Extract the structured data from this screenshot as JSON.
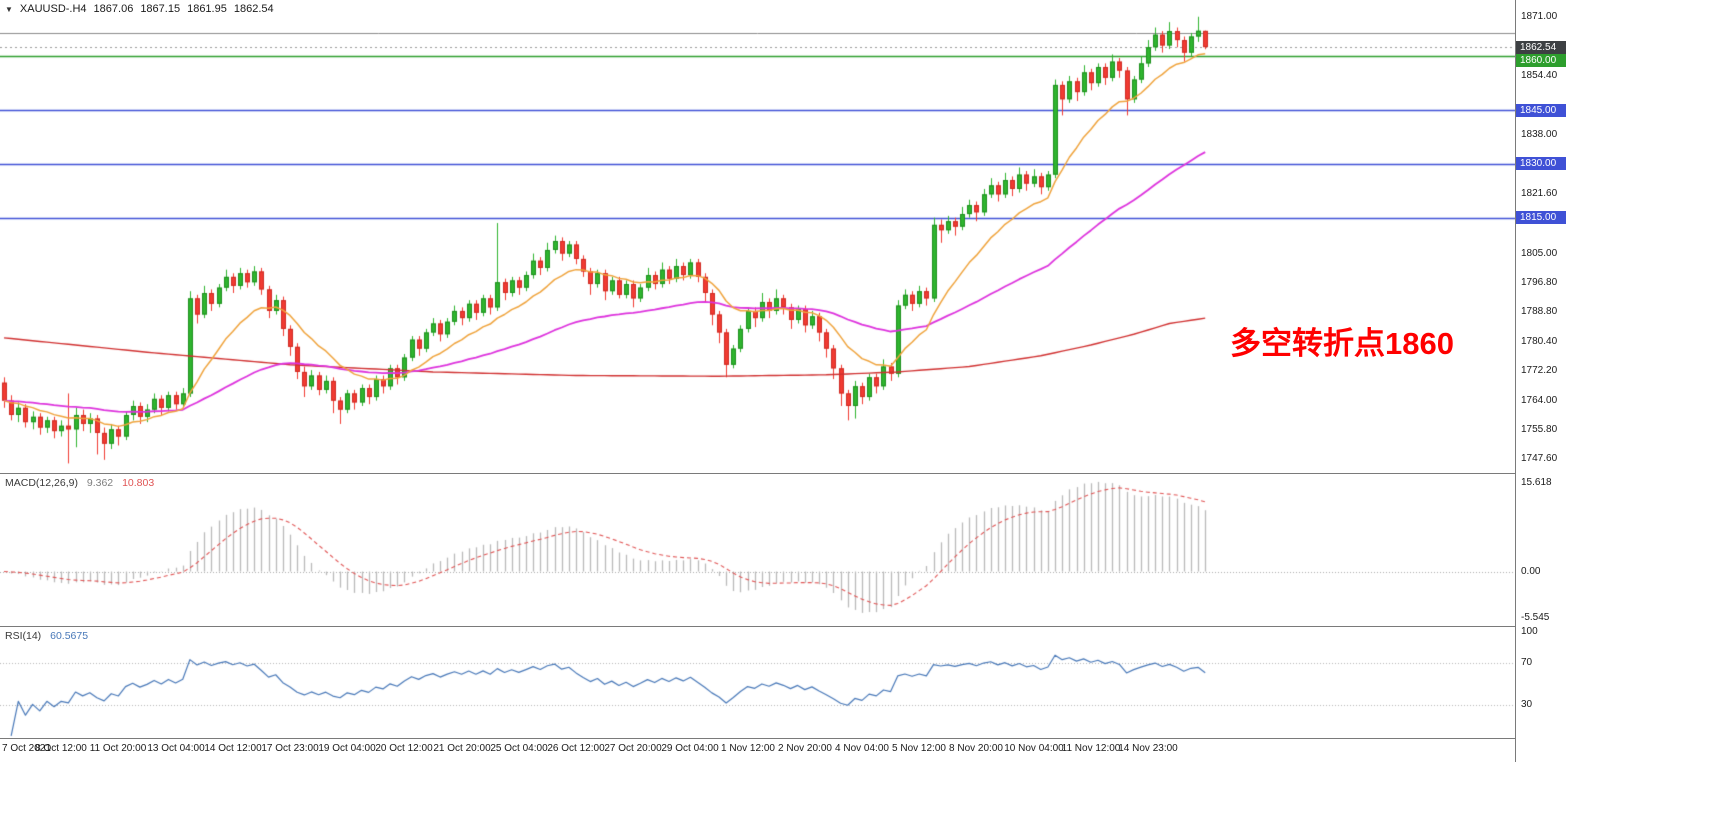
{
  "header": {
    "dropdown_icon": "▼",
    "symbol": "XAUUSD-.H4",
    "open": "1867.06",
    "high": "1867.15",
    "low": "1861.95",
    "close": "1862.54"
  },
  "annotation": {
    "text": "多空转折点1860",
    "color": "#ff0000"
  },
  "colors": {
    "background": "#ffffff",
    "candle_up": "#2fb42f",
    "candle_up_border": "#1d8f1d",
    "candle_down": "#f03b32",
    "candle_down_border": "#cf2a22",
    "level_green": "#2d9e2d",
    "level_blue": "#3f51d6",
    "current_price_box": "#3d4043",
    "object_gray": "#8a8a8a",
    "current_price_dotted": "#9a9a9a",
    "ma_fast_orange": "#efa33c",
    "ma_mid_magenta": "#dd33dd",
    "ma_slow_red": "#d03030",
    "macd_histogram": "#b9b9b9",
    "macd_signal": "#e05555",
    "rsi_line": "#4878b8",
    "pane_divider": "#7a7a7a"
  },
  "chart_data": {
    "type": "candlestick",
    "title": "XAUUSD- H4",
    "y_axis": {
      "top": 1874.0,
      "bottom": 1745.5,
      "ticks": [
        {
          "v": 1871.0,
          "t": "1871.00"
        },
        {
          "v": 1854.4,
          "t": "1854.40"
        },
        {
          "v": 1838.0,
          "t": "1838.00"
        },
        {
          "v": 1821.6,
          "t": "1821.60"
        },
        {
          "v": 1805.0,
          "t": "1805.00"
        },
        {
          "v": 1796.8,
          "t": "1796.80"
        },
        {
          "v": 1788.8,
          "t": "1788.80"
        },
        {
          "v": 1780.4,
          "t": "1780.40"
        },
        {
          "v": 1772.2,
          "t": "1772.20"
        },
        {
          "v": 1764.0,
          "t": "1764.00"
        },
        {
          "v": 1755.8,
          "t": "1755.80"
        },
        {
          "v": 1747.6,
          "t": "1747.60"
        }
      ]
    },
    "x_axis": {
      "label_step": 8,
      "labels": [
        "7 Oct 2021",
        "8 Oct 12:00",
        "11 Oct 20:00",
        "13 Oct 04:00",
        "14 Oct 12:00",
        "17 Oct 23:00",
        "19 Oct 04:00",
        "20 Oct 12:00",
        "21 Oct 20:00",
        "25 Oct 04:00",
        "26 Oct 12:00",
        "27 Oct 20:00",
        "29 Oct 04:00",
        "1 Nov 12:00",
        "2 Nov 20:00",
        "4 Nov 04:00",
        "5 Nov 12:00",
        "8 Nov 20:00",
        "10 Nov 04:00",
        "11 Nov 12:00",
        "14 Nov 23:00"
      ]
    },
    "levels": [
      {
        "v": 1860.0,
        "t": "1860.00",
        "color": "#2d9e2d"
      },
      {
        "v": 1845.0,
        "t": "1845.00",
        "color": "#3f51d6"
      },
      {
        "v": 1830.0,
        "t": "1830.00",
        "color": "#3f51d6"
      },
      {
        "v": 1815.0,
        "t": "1815.00",
        "color": "#3f51d6"
      }
    ],
    "current_price": {
      "v": 1862.54,
      "t": "1862.54"
    },
    "gray_hline": {
      "v": 1866.6
    },
    "moving_averages": [
      {
        "name": "ma-fast",
        "type": "ema",
        "period": 13,
        "color": "#efa33c",
        "width": 1.5
      },
      {
        "name": "ma-mid",
        "type": "ema",
        "period": 55,
        "color": "#dd33dd",
        "width": 1.8
      },
      {
        "name": "ma-slow",
        "type": "points",
        "color": "#d03030",
        "width": 1.4,
        "points": [
          [
            0,
            1781.5
          ],
          [
            20,
            1777.5
          ],
          [
            40,
            1774.0
          ],
          [
            60,
            1772.0
          ],
          [
            80,
            1771.0
          ],
          [
            100,
            1770.8
          ],
          [
            115,
            1771.2
          ],
          [
            125,
            1772.0
          ],
          [
            135,
            1773.5
          ],
          [
            145,
            1776.5
          ],
          [
            152,
            1779.5
          ],
          [
            158,
            1782.5
          ],
          [
            163,
            1785.5
          ],
          [
            168,
            1787.0
          ]
        ]
      }
    ],
    "macd": {
      "label": "MACD(12,26,9)",
      "main_value": "9.362",
      "signal_value": "10.803",
      "fast": 12,
      "slow": 26,
      "signal": 9,
      "axis": {
        "top": "15.618",
        "zero": "0.00",
        "bottom": "-5.545"
      }
    },
    "rsi": {
      "label": "RSI(14)",
      "value": "60.5675",
      "period": 14,
      "axis_levels": [
        {
          "v": 100,
          "t": "100"
        },
        {
          "v": 70,
          "t": "70"
        },
        {
          "v": 30,
          "t": "30"
        }
      ]
    },
    "candles": [
      [
        1769.0,
        1770.5,
        1762.0,
        1764.0
      ],
      [
        1764.0,
        1765.5,
        1758.5,
        1760.0
      ],
      [
        1760.0,
        1763.5,
        1758.0,
        1762.0
      ],
      [
        1762.0,
        1763.0,
        1756.5,
        1758.0
      ],
      [
        1758.0,
        1761.0,
        1756.0,
        1759.5
      ],
      [
        1759.5,
        1760.5,
        1754.5,
        1756.5
      ],
      [
        1756.5,
        1759.5,
        1755.0,
        1758.5
      ],
      [
        1758.5,
        1759.5,
        1753.5,
        1755.5
      ],
      [
        1755.5,
        1758.5,
        1754.0,
        1757.0
      ],
      [
        1757.0,
        1766.0,
        1746.5,
        1756.0
      ],
      [
        1756.0,
        1762.0,
        1751.0,
        1760.0
      ],
      [
        1760.0,
        1761.5,
        1755.5,
        1757.5
      ],
      [
        1757.5,
        1760.5,
        1755.0,
        1759.0
      ],
      [
        1759.0,
        1760.0,
        1749.0,
        1755.0
      ],
      [
        1755.0,
        1756.5,
        1747.5,
        1752.0
      ],
      [
        1752.0,
        1757.5,
        1750.5,
        1756.0
      ],
      [
        1756.0,
        1757.0,
        1751.5,
        1754.0
      ],
      [
        1754.0,
        1761.0,
        1753.0,
        1760.0
      ],
      [
        1760.0,
        1764.0,
        1758.5,
        1762.5
      ],
      [
        1762.5,
        1763.5,
        1757.5,
        1759.5
      ],
      [
        1759.5,
        1763.0,
        1758.0,
        1761.5
      ],
      [
        1761.5,
        1766.0,
        1760.5,
        1764.5
      ],
      [
        1764.5,
        1765.5,
        1760.0,
        1762.0
      ],
      [
        1762.0,
        1766.5,
        1761.0,
        1765.5
      ],
      [
        1765.5,
        1766.5,
        1761.5,
        1763.0
      ],
      [
        1763.0,
        1767.5,
        1762.0,
        1766.0
      ],
      [
        1766.0,
        1794.5,
        1765.0,
        1792.5
      ],
      [
        1792.5,
        1793.5,
        1785.5,
        1788.0
      ],
      [
        1788.0,
        1796.0,
        1787.0,
        1794.0
      ],
      [
        1794.0,
        1795.0,
        1789.0,
        1791.0
      ],
      [
        1791.0,
        1796.5,
        1790.0,
        1795.5
      ],
      [
        1795.5,
        1800.5,
        1794.5,
        1798.5
      ],
      [
        1798.5,
        1799.5,
        1794.0,
        1796.0
      ],
      [
        1796.0,
        1801.0,
        1795.0,
        1799.5
      ],
      [
        1799.5,
        1800.5,
        1795.5,
        1797.0
      ],
      [
        1797.0,
        1801.5,
        1796.0,
        1800.0
      ],
      [
        1800.0,
        1801.0,
        1793.5,
        1795.0
      ],
      [
        1795.0,
        1796.0,
        1787.0,
        1789.0
      ],
      [
        1789.0,
        1793.5,
        1788.0,
        1792.0
      ],
      [
        1792.0,
        1793.0,
        1782.0,
        1784.0
      ],
      [
        1784.0,
        1785.0,
        1776.5,
        1779.0
      ],
      [
        1779.0,
        1780.0,
        1770.0,
        1772.0
      ],
      [
        1772.0,
        1773.5,
        1765.0,
        1768.0
      ],
      [
        1768.0,
        1772.5,
        1767.0,
        1771.0
      ],
      [
        1771.0,
        1772.0,
        1765.5,
        1767.0
      ],
      [
        1767.0,
        1771.0,
        1766.0,
        1769.5
      ],
      [
        1769.5,
        1770.5,
        1760.5,
        1764.0
      ],
      [
        1764.0,
        1765.0,
        1757.5,
        1761.5
      ],
      [
        1761.5,
        1767.0,
        1760.5,
        1766.0
      ],
      [
        1766.0,
        1767.0,
        1761.5,
        1763.5
      ],
      [
        1763.5,
        1768.5,
        1762.5,
        1767.5
      ],
      [
        1767.5,
        1768.5,
        1763.0,
        1765.0
      ],
      [
        1765.0,
        1771.0,
        1764.0,
        1770.0
      ],
      [
        1770.0,
        1771.0,
        1766.0,
        1768.0
      ],
      [
        1768.0,
        1774.0,
        1767.0,
        1773.0
      ],
      [
        1773.0,
        1774.0,
        1768.5,
        1770.5
      ],
      [
        1770.5,
        1777.0,
        1769.5,
        1776.0
      ],
      [
        1776.0,
        1782.0,
        1775.0,
        1781.0
      ],
      [
        1781.0,
        1782.0,
        1776.5,
        1778.5
      ],
      [
        1778.5,
        1784.0,
        1777.5,
        1783.0
      ],
      [
        1783.0,
        1787.0,
        1782.0,
        1785.5
      ],
      [
        1785.5,
        1786.5,
        1780.5,
        1782.5
      ],
      [
        1782.5,
        1787.0,
        1781.5,
        1786.0
      ],
      [
        1786.0,
        1790.5,
        1785.0,
        1789.0
      ],
      [
        1789.0,
        1790.0,
        1785.0,
        1787.0
      ],
      [
        1787.0,
        1792.0,
        1786.0,
        1791.0
      ],
      [
        1791.0,
        1792.0,
        1786.5,
        1788.5
      ],
      [
        1788.5,
        1793.5,
        1787.5,
        1792.5
      ],
      [
        1792.5,
        1793.5,
        1788.0,
        1790.0
      ],
      [
        1790.0,
        1813.5,
        1789.0,
        1797.0
      ],
      [
        1797.0,
        1798.0,
        1792.0,
        1794.0
      ],
      [
        1794.0,
        1798.5,
        1793.0,
        1797.5
      ],
      [
        1797.5,
        1798.5,
        1793.5,
        1795.5
      ],
      [
        1795.5,
        1800.0,
        1794.5,
        1799.0
      ],
      [
        1799.0,
        1805.0,
        1798.0,
        1803.0
      ],
      [
        1803.0,
        1804.0,
        1799.0,
        1801.0
      ],
      [
        1801.0,
        1808.0,
        1800.0,
        1806.0
      ],
      [
        1806.0,
        1810.0,
        1805.0,
        1808.5
      ],
      [
        1808.5,
        1809.5,
        1803.0,
        1805.0
      ],
      [
        1805.0,
        1808.5,
        1804.0,
        1807.5
      ],
      [
        1807.5,
        1808.5,
        1802.0,
        1803.5
      ],
      [
        1803.5,
        1804.5,
        1798.5,
        1800.0
      ],
      [
        1800.0,
        1801.0,
        1793.5,
        1796.5
      ],
      [
        1796.5,
        1800.5,
        1795.5,
        1799.5
      ],
      [
        1799.5,
        1800.5,
        1792.0,
        1794.5
      ],
      [
        1794.5,
        1798.5,
        1793.5,
        1797.5
      ],
      [
        1797.5,
        1798.5,
        1792.5,
        1793.5
      ],
      [
        1793.5,
        1797.5,
        1792.5,
        1796.5
      ],
      [
        1796.5,
        1797.5,
        1790.0,
        1792.5
      ],
      [
        1792.5,
        1796.5,
        1791.5,
        1795.5
      ],
      [
        1795.5,
        1801.0,
        1794.5,
        1799.0
      ],
      [
        1799.0,
        1800.0,
        1795.0,
        1796.5
      ],
      [
        1796.5,
        1802.5,
        1795.5,
        1800.5
      ],
      [
        1800.5,
        1801.5,
        1796.5,
        1798.0
      ],
      [
        1798.0,
        1803.5,
        1797.0,
        1801.5
      ],
      [
        1801.5,
        1802.5,
        1797.5,
        1799.0
      ],
      [
        1799.0,
        1803.5,
        1798.0,
        1802.5
      ],
      [
        1802.5,
        1803.5,
        1797.0,
        1798.5
      ],
      [
        1798.5,
        1799.5,
        1791.5,
        1794.0
      ],
      [
        1794.0,
        1795.0,
        1785.0,
        1788.0
      ],
      [
        1788.0,
        1789.0,
        1780.0,
        1783.0
      ],
      [
        1783.0,
        1784.0,
        1770.5,
        1774.0
      ],
      [
        1774.0,
        1779.5,
        1773.0,
        1778.5
      ],
      [
        1778.5,
        1785.0,
        1777.5,
        1784.0
      ],
      [
        1784.0,
        1790.0,
        1783.0,
        1789.0
      ],
      [
        1789.0,
        1790.0,
        1784.5,
        1787.0
      ],
      [
        1787.0,
        1794.0,
        1786.0,
        1791.5
      ],
      [
        1791.5,
        1792.5,
        1787.0,
        1789.0
      ],
      [
        1789.0,
        1795.0,
        1788.0,
        1792.5
      ],
      [
        1792.5,
        1793.5,
        1788.0,
        1790.0
      ],
      [
        1790.0,
        1791.0,
        1784.0,
        1786.5
      ],
      [
        1786.5,
        1790.5,
        1785.5,
        1789.5
      ],
      [
        1789.5,
        1790.5,
        1783.0,
        1785.0
      ],
      [
        1785.0,
        1789.0,
        1784.0,
        1787.5
      ],
      [
        1787.5,
        1788.5,
        1780.5,
        1783.0
      ],
      [
        1783.0,
        1784.0,
        1776.0,
        1778.5
      ],
      [
        1778.5,
        1779.5,
        1770.0,
        1773.0
      ],
      [
        1773.0,
        1774.0,
        1762.5,
        1766.0
      ],
      [
        1766.0,
        1767.0,
        1758.5,
        1762.5
      ],
      [
        1762.5,
        1769.5,
        1759.0,
        1768.0
      ],
      [
        1768.0,
        1769.0,
        1763.0,
        1765.0
      ],
      [
        1765.0,
        1771.5,
        1764.0,
        1770.5
      ],
      [
        1770.5,
        1771.5,
        1766.0,
        1768.0
      ],
      [
        1768.0,
        1775.5,
        1767.0,
        1773.5
      ],
      [
        1773.5,
        1774.5,
        1769.5,
        1771.5
      ],
      [
        1771.5,
        1792.0,
        1770.5,
        1790.5
      ],
      [
        1790.5,
        1795.0,
        1789.5,
        1793.5
      ],
      [
        1793.5,
        1794.5,
        1789.0,
        1791.0
      ],
      [
        1791.0,
        1796.0,
        1790.0,
        1794.5
      ],
      [
        1794.5,
        1795.5,
        1790.5,
        1792.5
      ],
      [
        1792.5,
        1815.0,
        1791.5,
        1813.0
      ],
      [
        1813.0,
        1814.5,
        1808.0,
        1811.5
      ],
      [
        1811.5,
        1815.5,
        1810.5,
        1814.0
      ],
      [
        1814.0,
        1815.0,
        1810.0,
        1812.5
      ],
      [
        1812.5,
        1818.0,
        1811.5,
        1816.0
      ],
      [
        1816.0,
        1820.0,
        1815.0,
        1818.5
      ],
      [
        1818.5,
        1819.5,
        1814.0,
        1816.5
      ],
      [
        1816.5,
        1823.0,
        1815.5,
        1821.5
      ],
      [
        1821.5,
        1826.0,
        1820.5,
        1824.0
      ],
      [
        1824.0,
        1825.0,
        1819.5,
        1821.5
      ],
      [
        1821.5,
        1827.5,
        1820.5,
        1825.5
      ],
      [
        1825.5,
        1826.5,
        1821.0,
        1823.0
      ],
      [
        1823.0,
        1829.0,
        1822.0,
        1827.0
      ],
      [
        1827.0,
        1828.0,
        1822.5,
        1824.5
      ],
      [
        1824.5,
        1828.5,
        1823.5,
        1826.5
      ],
      [
        1826.5,
        1827.5,
        1821.5,
        1823.5
      ],
      [
        1823.5,
        1828.0,
        1822.5,
        1827.0
      ],
      [
        1827.0,
        1853.5,
        1826.0,
        1852.0
      ],
      [
        1852.0,
        1853.0,
        1843.5,
        1848.0
      ],
      [
        1848.0,
        1854.5,
        1847.0,
        1853.0
      ],
      [
        1853.0,
        1854.0,
        1847.5,
        1850.0
      ],
      [
        1850.0,
        1857.5,
        1849.0,
        1855.5
      ],
      [
        1855.5,
        1856.5,
        1850.5,
        1852.5
      ],
      [
        1852.5,
        1858.0,
        1851.5,
        1857.0
      ],
      [
        1857.0,
        1858.0,
        1852.0,
        1854.0
      ],
      [
        1854.0,
        1860.5,
        1853.0,
        1858.5
      ],
      [
        1858.5,
        1859.5,
        1854.0,
        1856.0
      ],
      [
        1856.0,
        1857.0,
        1843.5,
        1848.0
      ],
      [
        1848.0,
        1854.5,
        1847.0,
        1853.5
      ],
      [
        1853.5,
        1860.0,
        1852.5,
        1858.0
      ],
      [
        1858.0,
        1864.5,
        1857.0,
        1862.5
      ],
      [
        1862.5,
        1868.0,
        1861.5,
        1866.0
      ],
      [
        1866.0,
        1867.0,
        1861.0,
        1863.0
      ],
      [
        1863.0,
        1869.5,
        1862.0,
        1867.0
      ],
      [
        1867.0,
        1868.0,
        1862.5,
        1864.5
      ],
      [
        1864.5,
        1865.5,
        1858.5,
        1861.0
      ],
      [
        1861.0,
        1866.5,
        1860.0,
        1865.5
      ],
      [
        1865.5,
        1871.0,
        1864.0,
        1867.1
      ],
      [
        1867.06,
        1867.15,
        1861.95,
        1862.54
      ]
    ]
  }
}
